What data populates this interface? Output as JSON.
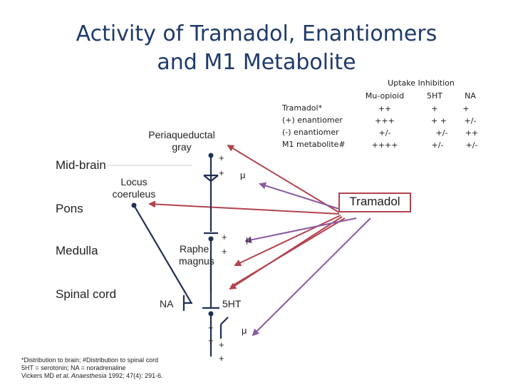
{
  "title": {
    "line1": "Activity of Tramadol, Enantiomers",
    "line2": "and M1 Metabolite"
  },
  "regions": {
    "midbrain": "Mid-brain",
    "pons": "Pons",
    "medulla": "Medulla",
    "spinal_cord": "Spinal cord"
  },
  "nuclei": {
    "pag_line1": "Periaqueductal",
    "pag_line2": "gray",
    "lc_line1": "Locus",
    "lc_line2": "coeruleus",
    "raphe_line1": "Raphe",
    "raphe_line2": "magnus"
  },
  "symbols": {
    "plus": "+",
    "mu": "μ",
    "na": "NA",
    "fivehtlabel": "5HT"
  },
  "tramadol_label": "Tramadol",
  "table": {
    "header": "Uptake Inhibition",
    "columns": [
      "Mu-opioid",
      "5HT",
      "NA"
    ],
    "rows": [
      {
        "name": "Tramadol*",
        "values": [
          "++",
          "+",
          "+"
        ]
      },
      {
        "name": "(+) enantiomer",
        "values": [
          "+++",
          "+ +",
          "+/-"
        ]
      },
      {
        "name": "(-) enantiomer",
        "values": [
          "+/-",
          "+/-",
          "++"
        ]
      },
      {
        "name": "M1 metabolite#",
        "values": [
          "++++",
          "+/-",
          "+/-"
        ]
      }
    ]
  },
  "footnote": {
    "line1": "*Distribution to brain; #Distribution to spinal cord",
    "line2": "5HT = serotonin; NA = noradrenaline",
    "line3_a": "Vickers MD ",
    "line3_b": "et al. Anaesthesia",
    "line3_c": " 1992; 47(4): 291-6."
  },
  "colors": {
    "title": "#1f3a6b",
    "tramadol_line": "#b3434f",
    "arrow_purple": "#8a5aa0",
    "neuron": "#1f2f55"
  }
}
